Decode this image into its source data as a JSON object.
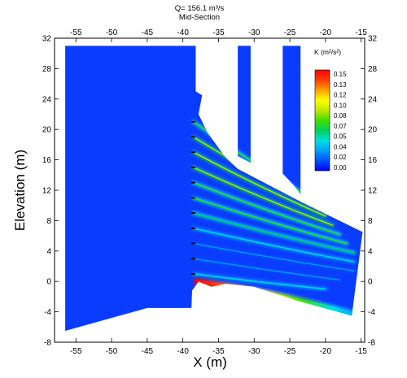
{
  "chart_data": {
    "type": "heatmap",
    "title": "Q= 156.1 m³/s",
    "subtitle": "Mid-Section",
    "xlabel": "X (m)",
    "ylabel": "Elevation (m)",
    "xlim": [
      -58,
      -14.5
    ],
    "ylim": [
      -8,
      32
    ],
    "xticks": [
      -55,
      -50,
      -45,
      -40,
      -35,
      -30,
      -25,
      -20,
      -15
    ],
    "yticks": [
      -8,
      -4,
      0,
      4,
      8,
      12,
      16,
      20,
      24,
      28,
      32
    ],
    "grid": false,
    "colorbar": {
      "title": "K (m²/s²)",
      "min": 0.0,
      "max": 0.15,
      "labels": [
        "0.15",
        "0.13",
        "0.12",
        "0.10",
        "0.08",
        "0.07",
        "0.05",
        "0.04",
        "0.02",
        "0.00"
      ],
      "placement": "top-right",
      "colors": [
        "#0000ff",
        "#0050ff",
        "#00a0ff",
        "#00e0e0",
        "#00d060",
        "#40e000",
        "#c0e800",
        "#ffff00",
        "#ffa000",
        "#ff4000",
        "#ff0000"
      ]
    },
    "background_value_color": "#0a3cff",
    "regions": [
      {
        "name": "main-domain",
        "value": 0.0,
        "outline": [
          [
            -56.5,
            31
          ],
          [
            -38.2,
            31
          ],
          [
            -38.2,
            25
          ],
          [
            -37.3,
            24.5
          ],
          [
            -37.8,
            22
          ],
          [
            -36.5,
            19.5
          ],
          [
            -34,
            16.3
          ],
          [
            -32.3,
            14.8
          ],
          [
            -23.5,
            10.5
          ],
          [
            -14.8,
            6.5
          ],
          [
            -16.3,
            -4.5
          ],
          [
            -24,
            -2.5
          ],
          [
            -30,
            -0.7
          ],
          [
            -34,
            -0.3
          ],
          [
            -36,
            -0.7
          ],
          [
            -37.8,
            0
          ],
          [
            -38.7,
            -1.2
          ],
          [
            -38.8,
            -3.5
          ],
          [
            -45,
            -3.5
          ],
          [
            -56.5,
            -6.5
          ]
        ]
      },
      {
        "name": "pier-left",
        "value": 0.0,
        "outline": [
          [
            -32.3,
            31
          ],
          [
            -30.5,
            31
          ],
          [
            -30.5,
            15.6
          ],
          [
            -32.3,
            16.5
          ]
        ]
      },
      {
        "name": "pier-right",
        "value": 0.0,
        "outline": [
          [
            -26,
            31
          ],
          [
            -23.5,
            31
          ],
          [
            -23.5,
            11.5
          ],
          [
            -24.4,
            12.6
          ],
          [
            -26,
            14.2
          ]
        ]
      }
    ],
    "jets": [
      {
        "x0": -38.5,
        "y0": 21.0,
        "x1": -22,
        "y1": 11.0,
        "k": 0.05
      },
      {
        "x0": -38.5,
        "y0": 19.0,
        "x1": -21,
        "y1": 9.8,
        "k": 0.06
      },
      {
        "x0": -38.5,
        "y0": 17.0,
        "x1": -20,
        "y1": 8.6,
        "k": 0.06
      },
      {
        "x0": -38.5,
        "y0": 15.0,
        "x1": -19,
        "y1": 7.4,
        "k": 0.06
      },
      {
        "x0": -38.5,
        "y0": 13.0,
        "x1": -18,
        "y1": 6.2,
        "k": 0.05
      },
      {
        "x0": -38.5,
        "y0": 11.0,
        "x1": -17,
        "y1": 5.0,
        "k": 0.05
      },
      {
        "x0": -38.5,
        "y0": 9.0,
        "x1": -16,
        "y1": 3.8,
        "k": 0.04
      },
      {
        "x0": -38.5,
        "y0": 7.0,
        "x1": -16,
        "y1": 2.6,
        "k": 0.03
      },
      {
        "x0": -38.5,
        "y0": 5.0,
        "x1": -16,
        "y1": 1.4,
        "k": 0.02
      },
      {
        "x0": -38.5,
        "y0": 3.0,
        "x1": -18,
        "y1": 0.2,
        "k": 0.02
      },
      {
        "x0": -38.5,
        "y0": 1.0,
        "x1": -20,
        "y1": -1.0,
        "k": 0.03
      }
    ],
    "hotspot": {
      "x": [
        -38,
        -15.5
      ],
      "y": [
        0,
        -4.4
      ],
      "k_max": 0.15
    }
  }
}
